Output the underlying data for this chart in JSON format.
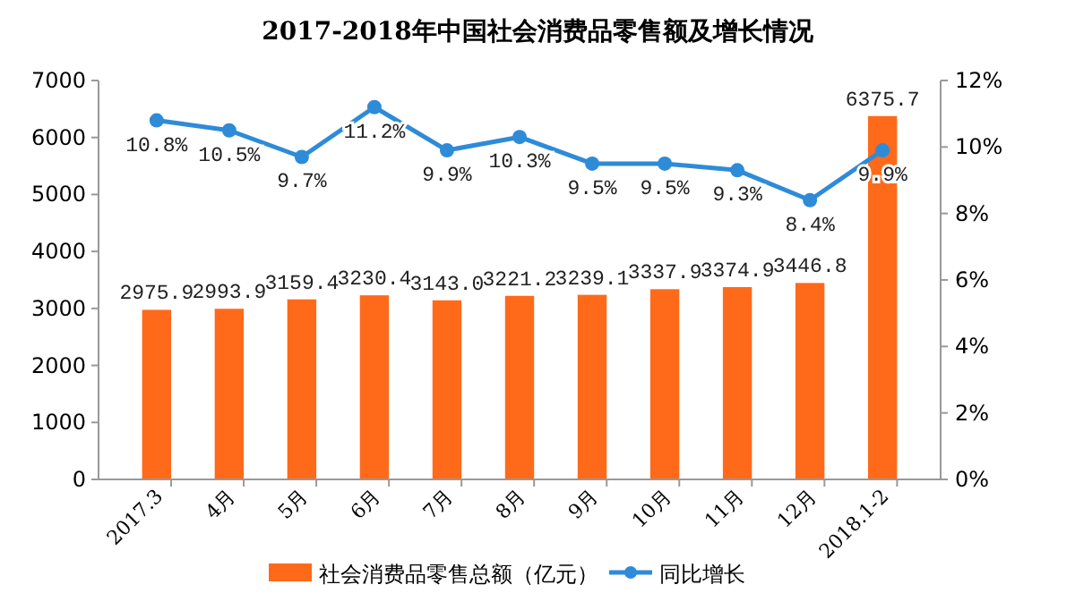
{
  "chart_data": {
    "type": "bar",
    "title": "2017-2018年中国社会消费品零售额及增长情况",
    "categories": [
      "2017.3",
      "4月",
      "5月",
      "6月",
      "7月",
      "8月",
      "9月",
      "10月",
      "11月",
      "12月",
      "2018.1-2"
    ],
    "series": [
      {
        "name": "社会消费品零售总额（亿元）",
        "color": "#ff6a1a",
        "values": [
          2975.9,
          2993.9,
          3159.4,
          3230.4,
          3143.0,
          3221.2,
          3239.1,
          3337.9,
          3374.9,
          3446.8,
          6375.7
        ],
        "value_labels": [
          "2975.9",
          "2993.9",
          "3159.4",
          "3230.4",
          "3143.0",
          "3221.2",
          "3239.1",
          "3337.9",
          "3374.9",
          "3446.8",
          "6375.7"
        ]
      },
      {
        "name": "同比增长",
        "type": "line",
        "axis": "y2",
        "color": "#2e8bd8",
        "marker": "circle",
        "values": [
          10.8,
          10.5,
          9.7,
          11.2,
          9.9,
          10.3,
          9.5,
          9.5,
          9.3,
          8.4,
          9.9
        ],
        "value_labels": [
          "10.8%",
          "10.5%",
          "9.7%",
          "11.2%",
          "9.9%",
          "10.3%",
          "9.5%",
          "9.5%",
          "9.3%",
          "8.4%",
          "9.9%"
        ]
      }
    ],
    "ylim": [
      0,
      7000
    ],
    "yticks": [
      0,
      1000,
      2000,
      3000,
      4000,
      5000,
      6000,
      7000
    ],
    "y2lim": [
      0,
      12
    ],
    "y2ticks": [
      {
        "value": 0,
        "label": "0%"
      },
      {
        "value": 2,
        "label": "2%"
      },
      {
        "value": 4,
        "label": "4%"
      },
      {
        "value": 6,
        "label": "6%"
      },
      {
        "value": 8,
        "label": "8%"
      },
      {
        "value": 10,
        "label": "10%"
      },
      {
        "value": 12,
        "label": "12%"
      }
    ],
    "legend": "bottom",
    "grid": false
  }
}
